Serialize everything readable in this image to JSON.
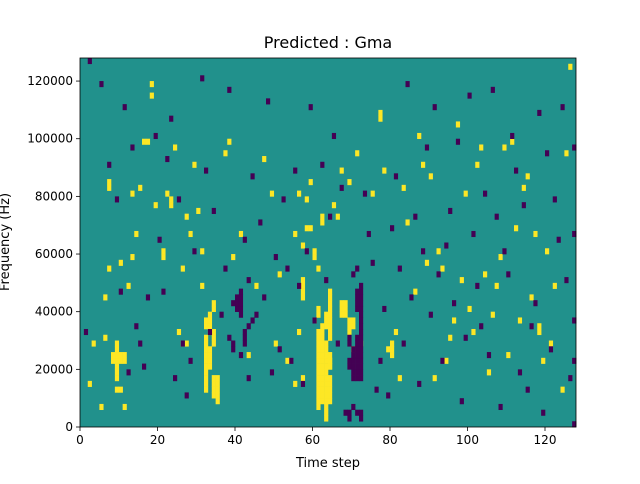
{
  "chart_data": {
    "type": "heatmap",
    "title": "Predicted : Gma",
    "xlabel": "Time step",
    "ylabel": "Frequency (Hz)",
    "xlim": [
      0,
      128
    ],
    "ylim": [
      0,
      128000
    ],
    "x_ticks": [
      0,
      20,
      40,
      60,
      80,
      100,
      120
    ],
    "x_tick_labels": [
      "0",
      "20",
      "40",
      "60",
      "80",
      "100",
      "120"
    ],
    "y_ticks": [
      0,
      20000,
      40000,
      60000,
      80000,
      100000,
      120000
    ],
    "y_tick_labels": [
      "0",
      "20000",
      "40000",
      "60000",
      "80000",
      "100000",
      "120000"
    ],
    "grid": false,
    "legend": "none",
    "colormap": {
      "low": "#440154",
      "mid": "#21918c",
      "high": "#fde725"
    },
    "value_levels": {
      "low": -1,
      "mid": 0,
      "high": 1
    },
    "background_value": 0,
    "high_cells": [
      [
        9,
        8
      ],
      [
        9,
        9
      ],
      [
        9,
        10
      ],
      [
        9,
        11
      ],
      [
        9,
        12
      ],
      [
        9,
        13
      ],
      [
        9,
        14
      ],
      [
        8,
        11
      ],
      [
        8,
        12
      ],
      [
        10,
        11
      ],
      [
        10,
        12
      ],
      [
        11,
        11
      ],
      [
        11,
        12
      ],
      [
        9,
        6
      ],
      [
        10,
        6
      ],
      [
        11,
        3
      ],
      [
        32,
        6
      ],
      [
        32,
        7
      ],
      [
        32,
        8
      ],
      [
        32,
        9
      ],
      [
        32,
        10
      ],
      [
        32,
        11
      ],
      [
        32,
        12
      ],
      [
        32,
        13
      ],
      [
        32,
        14
      ],
      [
        32,
        15
      ],
      [
        32,
        17
      ],
      [
        32,
        18
      ],
      [
        33,
        10
      ],
      [
        33,
        11
      ],
      [
        33,
        12
      ],
      [
        33,
        13
      ],
      [
        33,
        16
      ],
      [
        33,
        17
      ],
      [
        33,
        18
      ],
      [
        33,
        19
      ],
      [
        34,
        5
      ],
      [
        34,
        6
      ],
      [
        34,
        7
      ],
      [
        34,
        8
      ],
      [
        34,
        14
      ],
      [
        34,
        15
      ],
      [
        34,
        16
      ],
      [
        34,
        20
      ],
      [
        34,
        21
      ],
      [
        35,
        4
      ],
      [
        35,
        5
      ],
      [
        35,
        6
      ],
      [
        35,
        7
      ],
      [
        35,
        8
      ],
      [
        26,
        14
      ],
      [
        27,
        14
      ],
      [
        26,
        27
      ],
      [
        25,
        16
      ],
      [
        61,
        3
      ],
      [
        61,
        4
      ],
      [
        61,
        5
      ],
      [
        61,
        6
      ],
      [
        61,
        7
      ],
      [
        61,
        8
      ],
      [
        61,
        9
      ],
      [
        61,
        10
      ],
      [
        61,
        11
      ],
      [
        61,
        12
      ],
      [
        61,
        13
      ],
      [
        61,
        14
      ],
      [
        61,
        15
      ],
      [
        61,
        16
      ],
      [
        62,
        4
      ],
      [
        62,
        5
      ],
      [
        62,
        6
      ],
      [
        62,
        7
      ],
      [
        62,
        8
      ],
      [
        62,
        9
      ],
      [
        62,
        10
      ],
      [
        62,
        11
      ],
      [
        62,
        12
      ],
      [
        62,
        13
      ],
      [
        62,
        14
      ],
      [
        62,
        15
      ],
      [
        62,
        16
      ],
      [
        62,
        17
      ],
      [
        63,
        1
      ],
      [
        63,
        2
      ],
      [
        63,
        3
      ],
      [
        63,
        4
      ],
      [
        63,
        5
      ],
      [
        63,
        6
      ],
      [
        63,
        7
      ],
      [
        63,
        8
      ],
      [
        63,
        9
      ],
      [
        63,
        10
      ],
      [
        63,
        11
      ],
      [
        63,
        12
      ],
      [
        63,
        13
      ],
      [
        63,
        14
      ],
      [
        64,
        4
      ],
      [
        64,
        5
      ],
      [
        64,
        6
      ],
      [
        64,
        7
      ],
      [
        64,
        8
      ],
      [
        64,
        10
      ],
      [
        64,
        11
      ],
      [
        64,
        12
      ],
      [
        64,
        15
      ],
      [
        64,
        16
      ],
      [
        64,
        17
      ],
      [
        63,
        17
      ],
      [
        63,
        18
      ],
      [
        63,
        19
      ],
      [
        64,
        18
      ],
      [
        64,
        19
      ],
      [
        64,
        20
      ],
      [
        64,
        21
      ],
      [
        64,
        22
      ],
      [
        64,
        23
      ],
      [
        61,
        19
      ],
      [
        61,
        20
      ],
      [
        60,
        18
      ],
      [
        57,
        22
      ],
      [
        57,
        23
      ],
      [
        57,
        24
      ],
      [
        67,
        19
      ],
      [
        67,
        20
      ],
      [
        67,
        21
      ],
      [
        68,
        19
      ],
      [
        68,
        20
      ],
      [
        68,
        21
      ],
      [
        69,
        16
      ],
      [
        69,
        17
      ],
      [
        69,
        18
      ],
      [
        70,
        17
      ],
      [
        70,
        18
      ],
      [
        55,
        7
      ],
      [
        57,
        8
      ],
      [
        56,
        16
      ],
      [
        57,
        31
      ],
      [
        60,
        29
      ],
      [
        60,
        30
      ],
      [
        58,
        34
      ],
      [
        59,
        34
      ],
      [
        62,
        35
      ],
      [
        62,
        36
      ],
      [
        64,
        10
      ],
      [
        2,
        7
      ],
      [
        3,
        14
      ],
      [
        5,
        3
      ],
      [
        6,
        15
      ],
      [
        6,
        22
      ],
      [
        7,
        27
      ],
      [
        7,
        41
      ],
      [
        7,
        42
      ],
      [
        10,
        28
      ],
      [
        12,
        24
      ],
      [
        13,
        29
      ],
      [
        13,
        40
      ],
      [
        14,
        33
      ],
      [
        15,
        41
      ],
      [
        16,
        49
      ],
      [
        17,
        49
      ],
      [
        18,
        57
      ],
      [
        18,
        59
      ],
      [
        19,
        38
      ],
      [
        21,
        29
      ],
      [
        21,
        30
      ],
      [
        22,
        40
      ],
      [
        23,
        38
      ],
      [
        23,
        39
      ],
      [
        24,
        48
      ],
      [
        27,
        36
      ],
      [
        28,
        33
      ],
      [
        29,
        45
      ],
      [
        30,
        37
      ],
      [
        31,
        24
      ],
      [
        31,
        30
      ],
      [
        37,
        47
      ],
      [
        38,
        49
      ],
      [
        39,
        29
      ],
      [
        41,
        33
      ],
      [
        43,
        12
      ],
      [
        45,
        24
      ],
      [
        47,
        46
      ],
      [
        49,
        40
      ],
      [
        50,
        14
      ],
      [
        51,
        26
      ],
      [
        53,
        11
      ],
      [
        55,
        33
      ],
      [
        56,
        40
      ],
      [
        57,
        25
      ],
      [
        58,
        39
      ],
      [
        59,
        42
      ],
      [
        61,
        27
      ],
      [
        64,
        11
      ],
      [
        65,
        38
      ],
      [
        66,
        36
      ],
      [
        67,
        44
      ],
      [
        69,
        42
      ],
      [
        70,
        13
      ],
      [
        71,
        47
      ],
      [
        72,
        14
      ],
      [
        75,
        40
      ],
      [
        77,
        53
      ],
      [
        77,
        54
      ],
      [
        78,
        44
      ],
      [
        79,
        13
      ],
      [
        80,
        12
      ],
      [
        80,
        13
      ],
      [
        80,
        14
      ],
      [
        81,
        16
      ],
      [
        82,
        8
      ],
      [
        83,
        41
      ],
      [
        84,
        35
      ],
      [
        86,
        23
      ],
      [
        87,
        50
      ],
      [
        88,
        45
      ],
      [
        89,
        28
      ],
      [
        90,
        43
      ],
      [
        91,
        8
      ],
      [
        92,
        30
      ],
      [
        93,
        27
      ],
      [
        94,
        11
      ],
      [
        95,
        15
      ],
      [
        96,
        18
      ],
      [
        97,
        52
      ],
      [
        98,
        25
      ],
      [
        99,
        40
      ],
      [
        100,
        20
      ],
      [
        101,
        16
      ],
      [
        102,
        45
      ],
      [
        103,
        48
      ],
      [
        104,
        26
      ],
      [
        105,
        9
      ],
      [
        106,
        19
      ],
      [
        107,
        24
      ],
      [
        108,
        29
      ],
      [
        109,
        48
      ],
      [
        110,
        12
      ],
      [
        111,
        49
      ],
      [
        112,
        34
      ],
      [
        113,
        18
      ],
      [
        114,
        41
      ],
      [
        115,
        43
      ],
      [
        116,
        22
      ],
      [
        117,
        33
      ],
      [
        118,
        16
      ],
      [
        118,
        17
      ],
      [
        119,
        11
      ],
      [
        120,
        30
      ],
      [
        121,
        14
      ],
      [
        122,
        24
      ],
      [
        124,
        6
      ],
      [
        125,
        47
      ],
      [
        126,
        62
      ]
    ],
    "low_cells": [
      [
        70,
        8
      ],
      [
        70,
        9
      ],
      [
        70,
        10
      ],
      [
        70,
        11
      ],
      [
        70,
        12
      ],
      [
        70,
        13
      ],
      [
        71,
        8
      ],
      [
        71,
        9
      ],
      [
        71,
        10
      ],
      [
        71,
        11
      ],
      [
        71,
        12
      ],
      [
        71,
        13
      ],
      [
        71,
        14
      ],
      [
        71,
        15
      ],
      [
        72,
        8
      ],
      [
        72,
        9
      ],
      [
        72,
        10
      ],
      [
        72,
        11
      ],
      [
        72,
        12
      ],
      [
        72,
        13
      ],
      [
        72,
        14
      ],
      [
        72,
        15
      ],
      [
        72,
        16
      ],
      [
        72,
        17
      ],
      [
        72,
        18
      ],
      [
        72,
        19
      ],
      [
        72,
        20
      ],
      [
        72,
        21
      ],
      [
        72,
        22
      ],
      [
        72,
        23
      ],
      [
        72,
        24
      ],
      [
        71,
        20
      ],
      [
        71,
        21
      ],
      [
        71,
        22
      ],
      [
        71,
        23
      ],
      [
        69,
        10
      ],
      [
        69,
        11
      ],
      [
        69,
        14
      ],
      [
        69,
        15
      ],
      [
        70,
        26
      ],
      [
        71,
        27
      ],
      [
        72,
        2
      ],
      [
        69,
        1
      ],
      [
        69,
        2
      ],
      [
        40,
        20
      ],
      [
        40,
        21
      ],
      [
        40,
        22
      ],
      [
        41,
        19
      ],
      [
        41,
        20
      ],
      [
        41,
        21
      ],
      [
        41,
        22
      ],
      [
        41,
        23
      ],
      [
        42,
        14
      ],
      [
        42,
        15
      ],
      [
        42,
        16
      ],
      [
        43,
        17
      ],
      [
        38,
        15
      ],
      [
        39,
        13
      ],
      [
        39,
        14
      ],
      [
        43,
        8
      ],
      [
        44,
        18
      ],
      [
        1,
        16
      ],
      [
        2,
        63
      ],
      [
        5,
        59
      ],
      [
        7,
        45
      ],
      [
        9,
        39
      ],
      [
        10,
        23
      ],
      [
        11,
        55
      ],
      [
        12,
        9
      ],
      [
        13,
        48
      ],
      [
        14,
        17
      ],
      [
        15,
        14
      ],
      [
        16,
        10
      ],
      [
        17,
        22
      ],
      [
        19,
        50
      ],
      [
        20,
        32
      ],
      [
        21,
        23
      ],
      [
        22,
        46
      ],
      [
        23,
        53
      ],
      [
        24,
        8
      ],
      [
        25,
        39
      ],
      [
        26,
        14
      ],
      [
        27,
        5
      ],
      [
        28,
        11
      ],
      [
        29,
        30
      ],
      [
        31,
        60
      ],
      [
        32,
        44
      ],
      [
        33,
        16
      ],
      [
        34,
        37
      ],
      [
        36,
        19
      ],
      [
        37,
        27
      ],
      [
        38,
        58
      ],
      [
        39,
        21
      ],
      [
        41,
        12
      ],
      [
        42,
        32
      ],
      [
        43,
        25
      ],
      [
        44,
        43
      ],
      [
        45,
        19
      ],
      [
        46,
        35
      ],
      [
        47,
        22
      ],
      [
        48,
        56
      ],
      [
        49,
        9
      ],
      [
        50,
        29
      ],
      [
        51,
        13
      ],
      [
        52,
        39
      ],
      [
        53,
        27
      ],
      [
        54,
        11
      ],
      [
        55,
        44
      ],
      [
        56,
        24
      ],
      [
        57,
        7
      ],
      [
        58,
        30
      ],
      [
        59,
        55
      ],
      [
        60,
        18
      ],
      [
        62,
        45
      ],
      [
        63,
        25
      ],
      [
        64,
        36
      ],
      [
        65,
        50
      ],
      [
        66,
        14
      ],
      [
        67,
        41
      ],
      [
        68,
        2
      ],
      [
        70,
        3
      ],
      [
        71,
        2
      ],
      [
        72,
        1
      ],
      [
        73,
        40
      ],
      [
        74,
        33
      ],
      [
        75,
        28
      ],
      [
        76,
        6
      ],
      [
        77,
        11
      ],
      [
        78,
        20
      ],
      [
        79,
        5
      ],
      [
        80,
        34
      ],
      [
        81,
        43
      ],
      [
        82,
        27
      ],
      [
        83,
        14
      ],
      [
        84,
        59
      ],
      [
        85,
        22
      ],
      [
        86,
        36
      ],
      [
        87,
        7
      ],
      [
        88,
        30
      ],
      [
        89,
        48
      ],
      [
        90,
        19
      ],
      [
        91,
        55
      ],
      [
        92,
        26
      ],
      [
        93,
        11
      ],
      [
        94,
        31
      ],
      [
        95,
        37
      ],
      [
        96,
        21
      ],
      [
        97,
        49
      ],
      [
        98,
        4
      ],
      [
        99,
        15
      ],
      [
        100,
        57
      ],
      [
        101,
        33
      ],
      [
        102,
        24
      ],
      [
        103,
        17
      ],
      [
        104,
        40
      ],
      [
        105,
        12
      ],
      [
        106,
        58
      ],
      [
        107,
        36
      ],
      [
        108,
        3
      ],
      [
        109,
        30
      ],
      [
        110,
        26
      ],
      [
        111,
        50
      ],
      [
        112,
        44
      ],
      [
        113,
        9
      ],
      [
        114,
        38
      ],
      [
        115,
        6
      ],
      [
        116,
        17
      ],
      [
        117,
        21
      ],
      [
        118,
        54
      ],
      [
        119,
        2
      ],
      [
        120,
        47
      ],
      [
        121,
        13
      ],
      [
        122,
        39
      ],
      [
        123,
        32
      ],
      [
        124,
        55
      ],
      [
        125,
        25
      ],
      [
        126,
        8
      ],
      [
        127,
        0
      ],
      [
        127,
        33
      ],
      [
        127,
        48
      ],
      [
        127,
        18
      ],
      [
        127,
        11
      ]
    ]
  }
}
